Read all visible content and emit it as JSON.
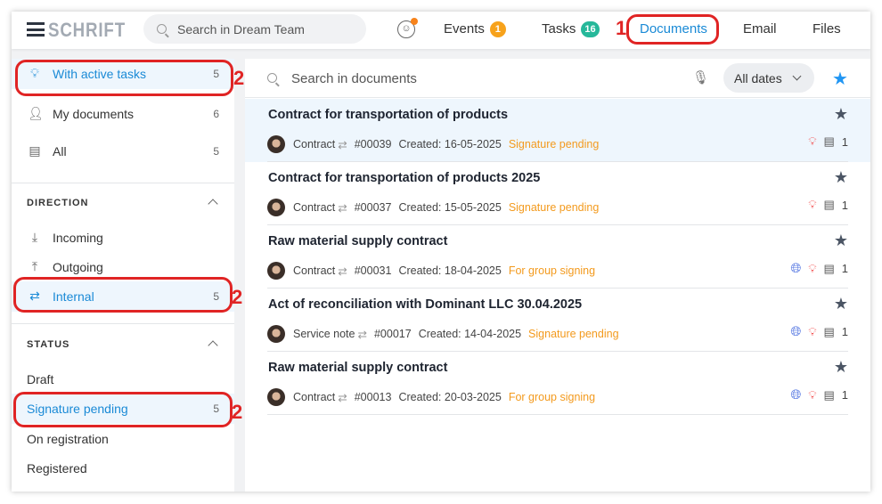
{
  "header": {
    "logo": "SCHRIFT",
    "search_placeholder": "Search in Dream Team",
    "nav": [
      {
        "label": "Events",
        "badge": "1",
        "badge_color": "#f7a21b"
      },
      {
        "label": "Tasks",
        "badge": "16",
        "badge_color": "#26b89a"
      },
      {
        "label": "Documents",
        "active": true
      },
      {
        "label": "Email"
      },
      {
        "label": "Files"
      }
    ]
  },
  "annotations": {
    "one": "1",
    "two": "2",
    "color": "#e02424"
  },
  "sidebar": {
    "top": [
      {
        "label": "With active tasks",
        "count": "5",
        "icon": "lightbulb-icon",
        "active": true
      },
      {
        "label": "My documents",
        "count": "6",
        "icon": "user-icon"
      },
      {
        "label": "All",
        "count": "5",
        "icon": "document-icon"
      }
    ],
    "direction": {
      "title": "DIRECTION",
      "items": [
        {
          "label": "Incoming",
          "icon": "download-icon"
        },
        {
          "label": "Outgoing",
          "icon": "upload-icon"
        },
        {
          "label": "Internal",
          "count": "5",
          "icon": "exchange-icon",
          "active": true
        }
      ]
    },
    "status": {
      "title": "STATUS",
      "items": [
        {
          "label": "Draft"
        },
        {
          "label": "Signature pending",
          "count": "5",
          "active": true
        },
        {
          "label": "On registration"
        },
        {
          "label": "Registered"
        }
      ]
    }
  },
  "main": {
    "search_placeholder": "Search in documents",
    "dates": "All dates",
    "documents": [
      {
        "title": "Contract for transportation of products",
        "type": "Contract",
        "number": "#00039",
        "created": "Created: 16-05-2025",
        "status": "Signature pending",
        "files": "1",
        "globe": false
      },
      {
        "title": "Contract for transportation of products 2025",
        "type": "Contract",
        "number": "#00037",
        "created": "Created: 15-05-2025",
        "status": "Signature pending",
        "files": "1",
        "globe": false
      },
      {
        "title": "Raw material supply contract",
        "type": "Contract",
        "number": "#00031",
        "created": "Created: 18-04-2025",
        "status": "For group signing",
        "files": "1",
        "globe": true
      },
      {
        "title": "Act of reconciliation with Dominant LLC 30.04.2025",
        "type": "Service note",
        "number": "#00017",
        "created": "Created: 14-04-2025",
        "status": "Signature pending",
        "files": "1",
        "globe": true
      },
      {
        "title": "Raw material supply contract",
        "type": "Contract",
        "number": "#00013",
        "created": "Created: 20-03-2025",
        "status": "For group signing",
        "files": "1",
        "globe": true
      }
    ]
  }
}
